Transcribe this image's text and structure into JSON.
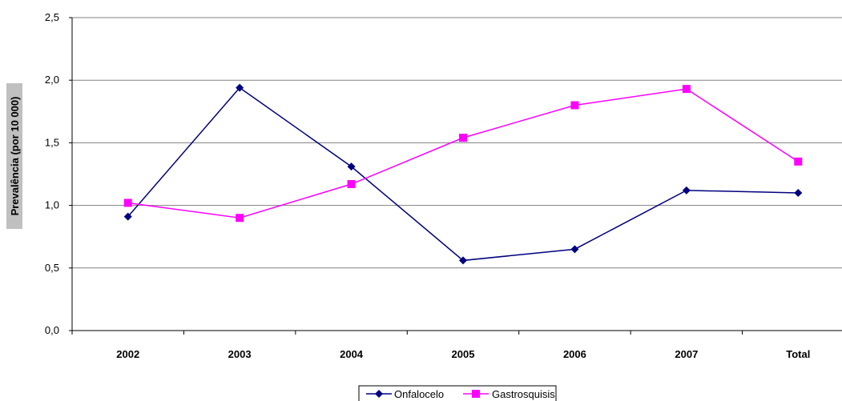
{
  "chart_data": {
    "type": "line",
    "title": "",
    "xlabel": "",
    "ylabel": "Prevalência (por 10 000)",
    "categories": [
      "2002",
      "2003",
      "2004",
      "2005",
      "2006",
      "2007",
      "Total"
    ],
    "ylim": [
      0,
      2.5
    ],
    "yticks": [
      "0,0",
      "0,5",
      "1,0",
      "1,5",
      "2,0",
      "2,5"
    ],
    "ytick_values": [
      0,
      0.5,
      1.0,
      1.5,
      2.0,
      2.5
    ],
    "grid": true,
    "legend_position": "bottom-center",
    "series": [
      {
        "name": "Onfalocelo",
        "color": "#000080",
        "marker": "diamond",
        "values": [
          0.91,
          1.94,
          1.31,
          0.56,
          0.65,
          1.12,
          1.1
        ]
      },
      {
        "name": "Gastrosquisis",
        "color": "#FF00FF",
        "marker": "square",
        "values": [
          1.02,
          0.9,
          1.17,
          1.54,
          1.8,
          1.93,
          1.35
        ]
      }
    ]
  }
}
